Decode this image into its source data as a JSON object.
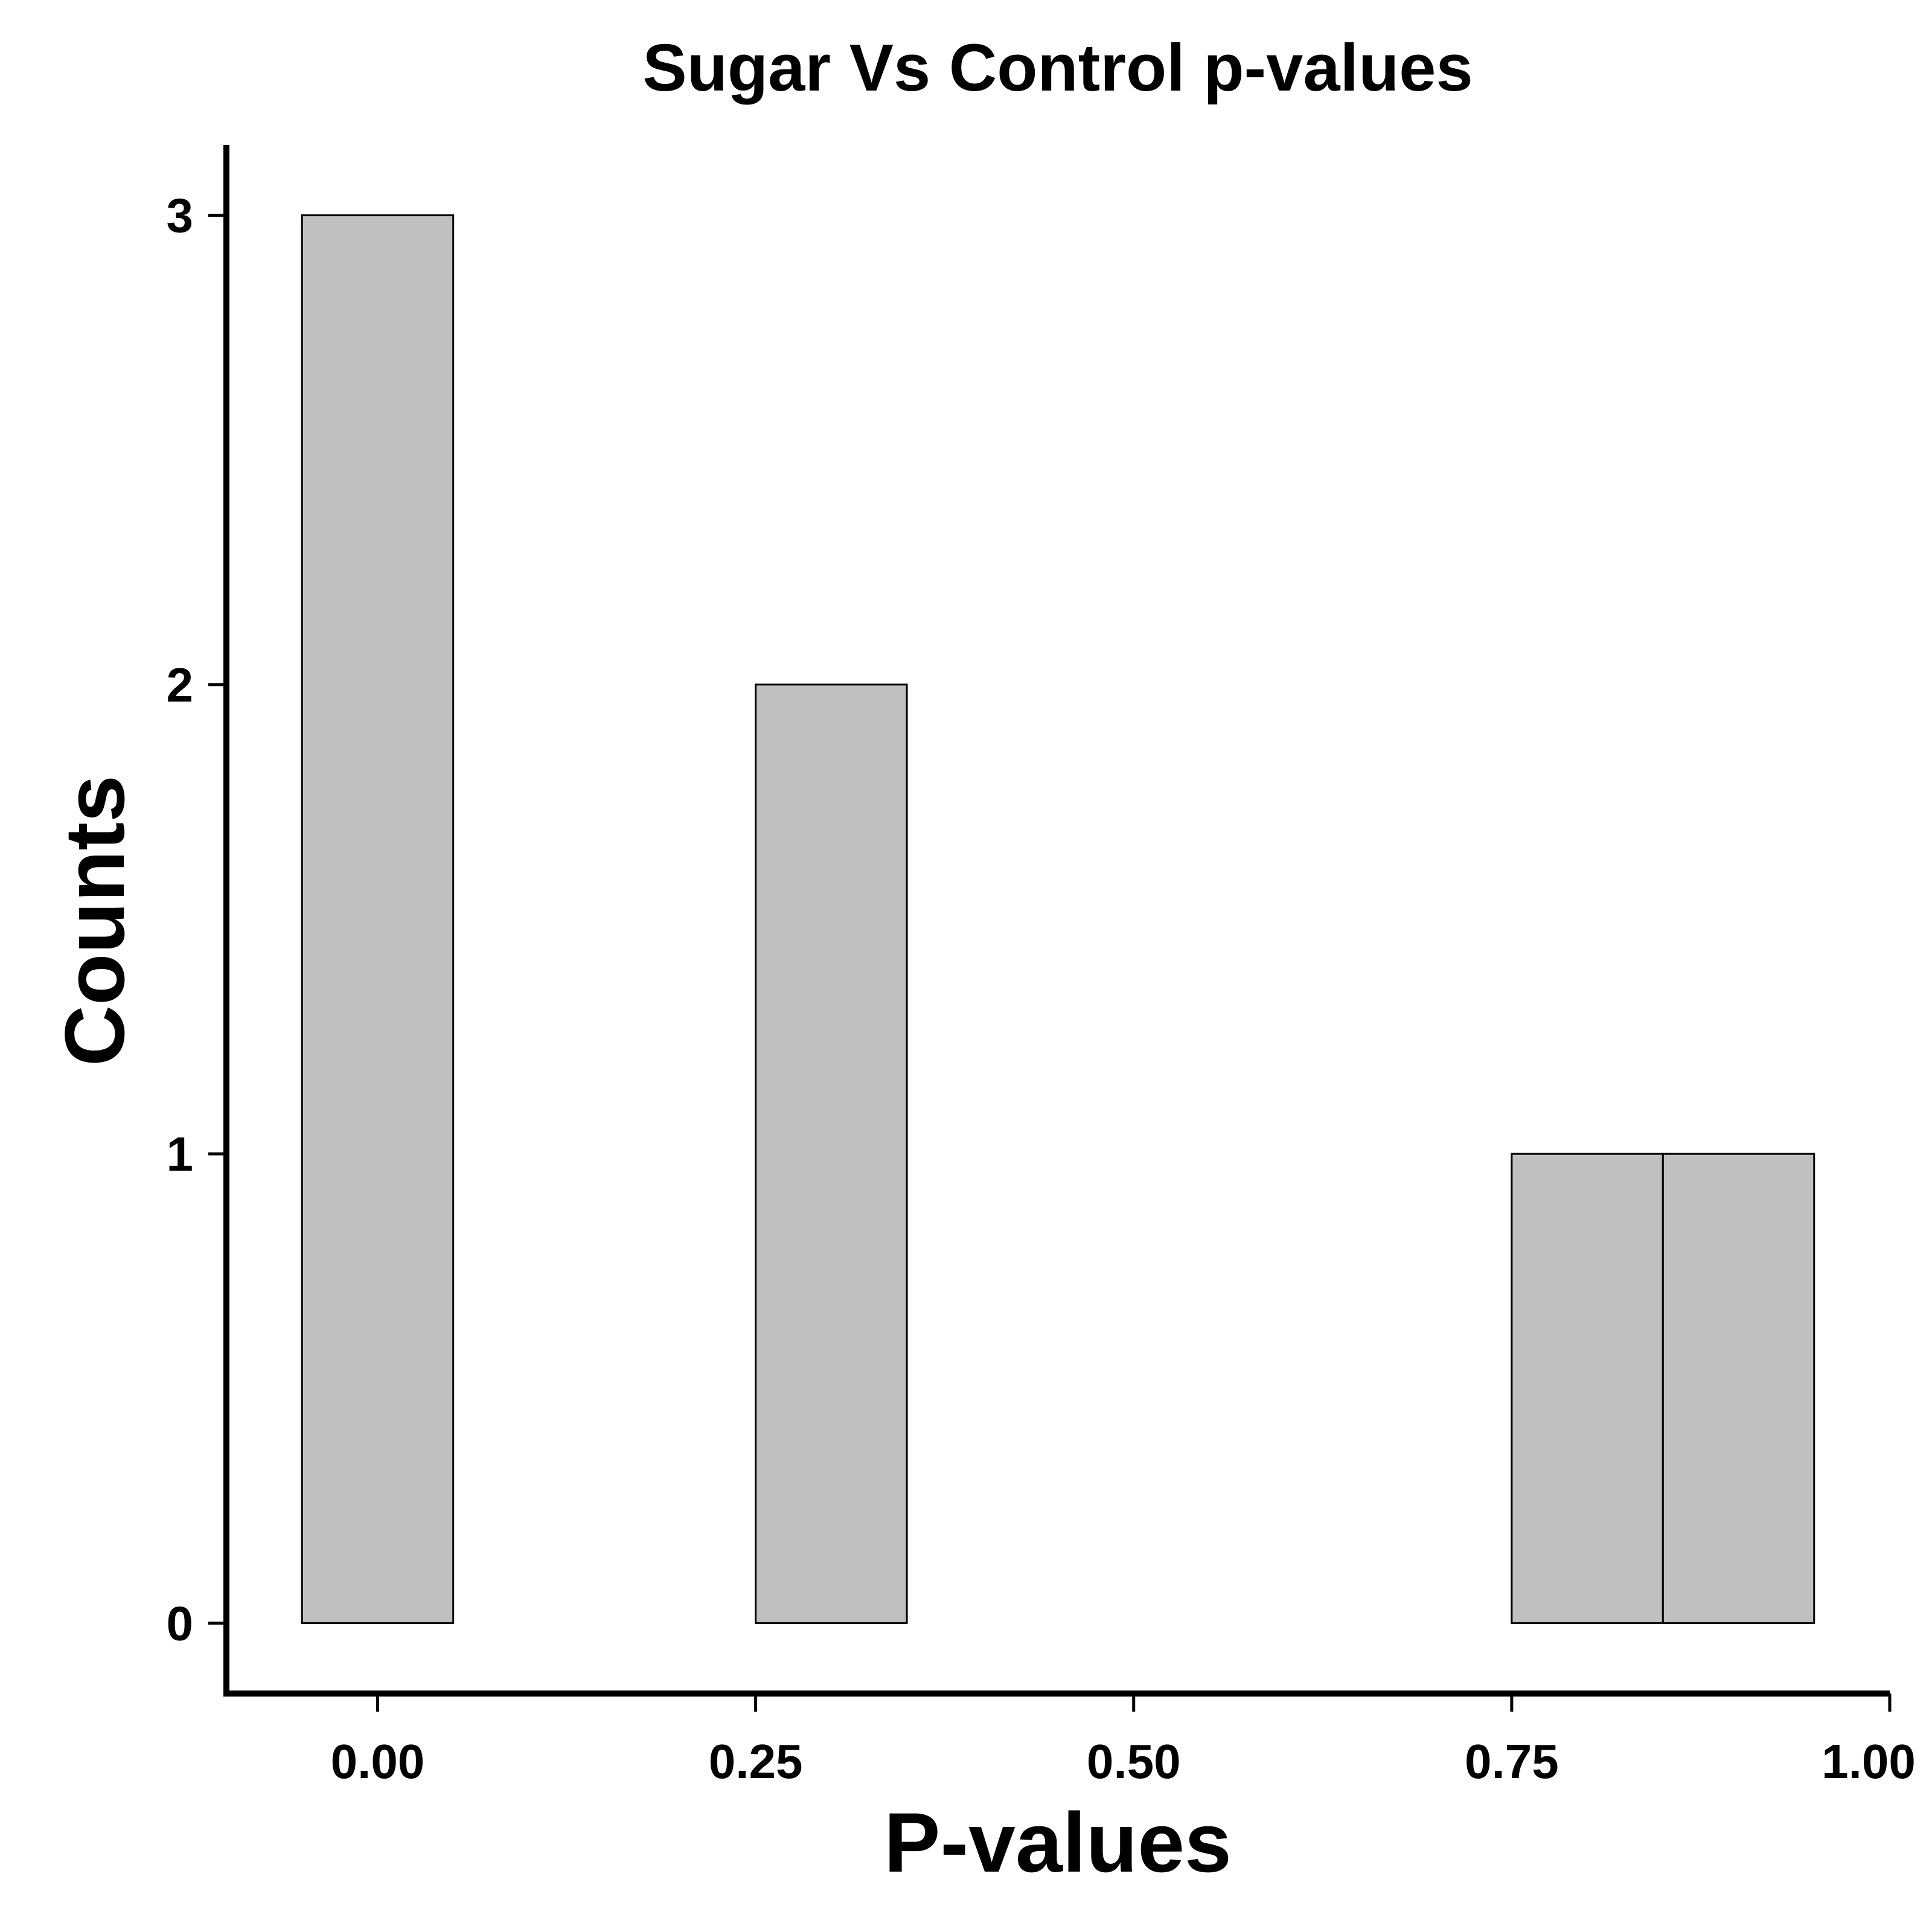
{
  "chart_data": {
    "type": "bar",
    "title": "Sugar Vs Control p-values",
    "xlabel": "P-values",
    "ylabel": "Counts",
    "xlim": [
      -0.1,
      1.0
    ],
    "ylim": [
      -0.15,
      3.15
    ],
    "xticks": [
      0.0,
      0.25,
      0.5,
      0.75,
      1.0
    ],
    "xtick_labels": [
      "0.00",
      "0.25",
      "0.50",
      "0.75",
      "1.00"
    ],
    "yticks": [
      0,
      1,
      2,
      3
    ],
    "ytick_labels": [
      "0",
      "1",
      "2",
      "3"
    ],
    "bin_width": 0.1,
    "bins": [
      {
        "x": 0.0,
        "count": 3
      },
      {
        "x": 0.3,
        "count": 2
      },
      {
        "x": 0.8,
        "count": 1
      },
      {
        "x": 0.9,
        "count": 1
      }
    ],
    "bar_fill": "#c0c0c0",
    "bar_stroke": "#000000",
    "grid": false,
    "legend": "none"
  }
}
